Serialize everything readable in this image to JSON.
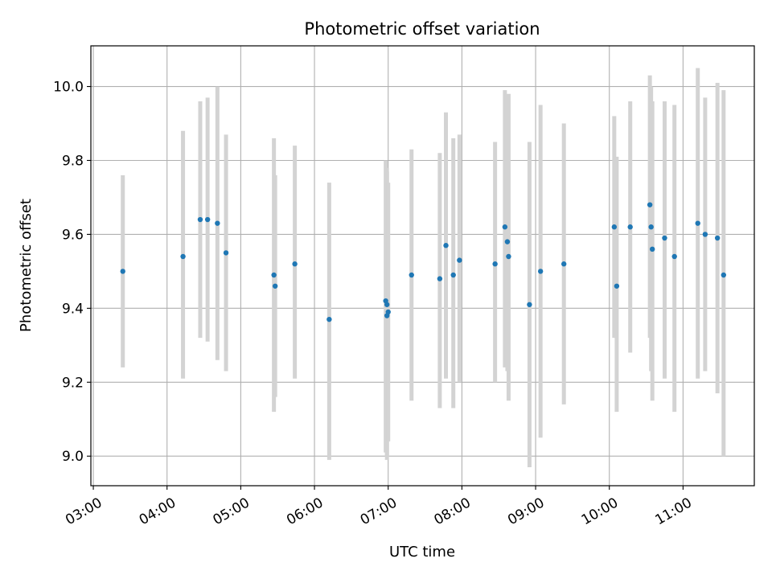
{
  "chart_data": {
    "type": "scatter",
    "title": "Photometric offset variation",
    "xlabel": "UTC time",
    "ylabel": "Photometric offset",
    "x_tick_labels": [
      "03:00",
      "04:00",
      "05:00",
      "06:00",
      "07:00",
      "08:00",
      "09:00",
      "10:00",
      "11:00"
    ],
    "y_ticks": [
      9.0,
      9.2,
      9.4,
      9.6,
      9.8,
      10.0
    ],
    "xlim": [
      "02:58",
      "11:58"
    ],
    "ylim": [
      8.92,
      10.11
    ],
    "grid": true,
    "colors": {
      "points": "#1f77b4",
      "error_bars": "#d3d3d3",
      "grid": "#b0b0b0"
    },
    "points": [
      {
        "x": "03:24",
        "y": 9.5,
        "err_low": 9.24,
        "err_high": 9.76
      },
      {
        "x": "04:13",
        "y": 9.54,
        "err_low": 9.21,
        "err_high": 9.88
      },
      {
        "x": "04:27",
        "y": 9.64,
        "err_low": 9.32,
        "err_high": 9.96
      },
      {
        "x": "04:33",
        "y": 9.64,
        "err_low": 9.31,
        "err_high": 9.97
      },
      {
        "x": "04:41",
        "y": 9.63,
        "err_low": 9.26,
        "err_high": 10.0
      },
      {
        "x": "04:48",
        "y": 9.55,
        "err_low": 9.23,
        "err_high": 9.87
      },
      {
        "x": "05:27",
        "y": 9.49,
        "err_low": 9.12,
        "err_high": 9.86
      },
      {
        "x": "05:28",
        "y": 9.46,
        "err_low": 9.16,
        "err_high": 9.76
      },
      {
        "x": "05:44",
        "y": 9.52,
        "err_low": 9.21,
        "err_high": 9.84
      },
      {
        "x": "06:12",
        "y": 9.37,
        "err_low": 8.99,
        "err_high": 9.74
      },
      {
        "x": "06:58",
        "y": 9.42,
        "err_low": 9.01,
        "err_high": 9.8
      },
      {
        "x": "06:59",
        "y": 9.41,
        "err_low": 9.0,
        "err_high": 9.78
      },
      {
        "x": "06:59",
        "y": 9.38,
        "err_low": 8.99,
        "err_high": 9.77
      },
      {
        "x": "07:00",
        "y": 9.39,
        "err_low": 9.04,
        "err_high": 9.74
      },
      {
        "x": "07:19",
        "y": 9.49,
        "err_low": 9.15,
        "err_high": 9.83
      },
      {
        "x": "07:42",
        "y": 9.48,
        "err_low": 9.13,
        "err_high": 9.82
      },
      {
        "x": "07:47",
        "y": 9.57,
        "err_low": 9.21,
        "err_high": 9.93
      },
      {
        "x": "07:53",
        "y": 9.49,
        "err_low": 9.13,
        "err_high": 9.86
      },
      {
        "x": "07:58",
        "y": 9.53,
        "err_low": 9.2,
        "err_high": 9.87
      },
      {
        "x": "08:27",
        "y": 9.52,
        "err_low": 9.2,
        "err_high": 9.85
      },
      {
        "x": "08:35",
        "y": 9.62,
        "err_low": 9.24,
        "err_high": 9.99
      },
      {
        "x": "08:37",
        "y": 9.58,
        "err_low": 9.23,
        "err_high": 9.93
      },
      {
        "x": "08:38",
        "y": 9.54,
        "err_low": 9.15,
        "err_high": 9.98
      },
      {
        "x": "08:55",
        "y": 9.41,
        "err_low": 8.97,
        "err_high": 9.85
      },
      {
        "x": "09:04",
        "y": 9.5,
        "err_low": 9.05,
        "err_high": 9.95
      },
      {
        "x": "09:23",
        "y": 9.52,
        "err_low": 9.14,
        "err_high": 9.9
      },
      {
        "x": "10:04",
        "y": 9.62,
        "err_low": 9.32,
        "err_high": 9.92
      },
      {
        "x": "10:06",
        "y": 9.46,
        "err_low": 9.12,
        "err_high": 9.81
      },
      {
        "x": "10:17",
        "y": 9.62,
        "err_low": 9.28,
        "err_high": 9.96
      },
      {
        "x": "10:33",
        "y": 9.68,
        "err_low": 9.32,
        "err_high": 10.03
      },
      {
        "x": "10:34",
        "y": 9.62,
        "err_low": 9.23,
        "err_high": 10.0
      },
      {
        "x": "10:35",
        "y": 9.56,
        "err_low": 9.15,
        "err_high": 9.96
      },
      {
        "x": "10:45",
        "y": 9.59,
        "err_low": 9.21,
        "err_high": 9.96
      },
      {
        "x": "10:53",
        "y": 9.54,
        "err_low": 9.12,
        "err_high": 9.95
      },
      {
        "x": "11:12",
        "y": 9.63,
        "err_low": 9.21,
        "err_high": 10.05
      },
      {
        "x": "11:18",
        "y": 9.6,
        "err_low": 9.23,
        "err_high": 9.97
      },
      {
        "x": "11:28",
        "y": 9.59,
        "err_low": 9.17,
        "err_high": 10.01
      },
      {
        "x": "11:33",
        "y": 9.49,
        "err_low": 9.0,
        "err_high": 9.99
      }
    ]
  }
}
